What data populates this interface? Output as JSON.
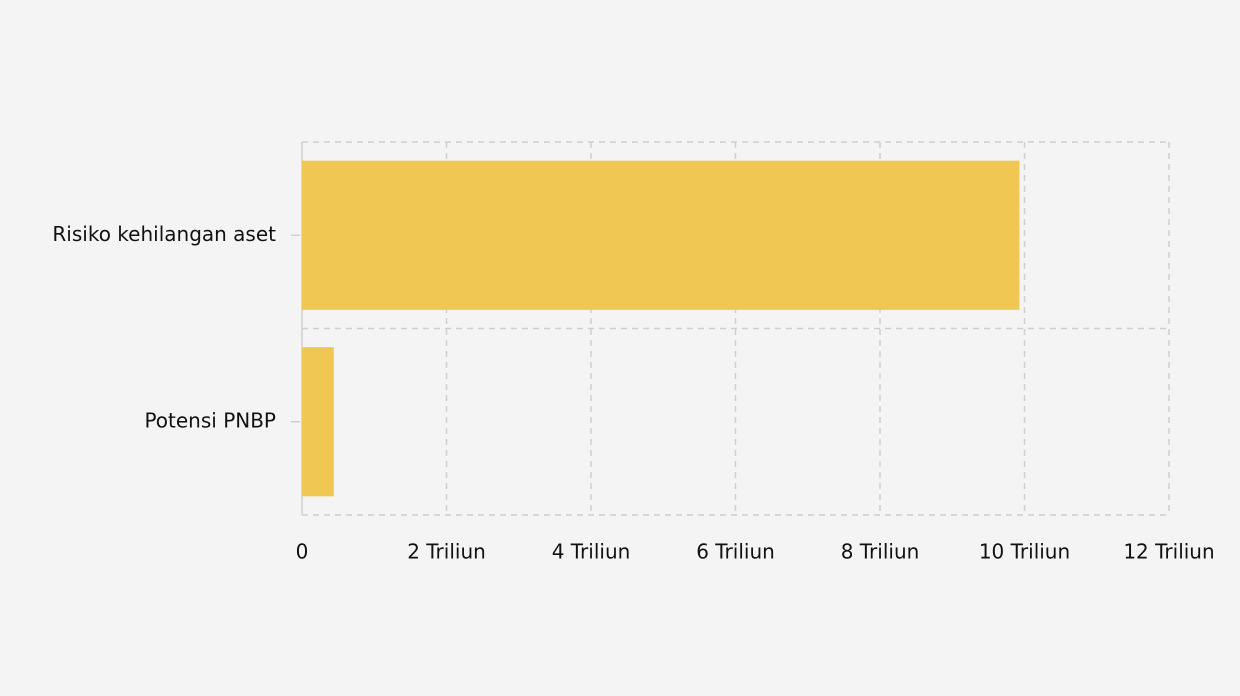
{
  "chart_data": {
    "type": "bar",
    "orientation": "horizontal",
    "categories": [
      "Risiko kehilangan aset",
      "Potensi PNBP"
    ],
    "values": [
      9.93,
      0.44
    ],
    "color": "#efc752",
    "xlim": [
      0,
      12
    ],
    "xticks": [
      0,
      {
        "value": 2,
        "label": "2 Triliun"
      },
      {
        "value": 4,
        "label": "4 Triliun"
      },
      {
        "value": 6,
        "label": "6 Triliun"
      },
      {
        "value": 8,
        "label": "8 Triliun"
      },
      {
        "value": 10,
        "label": "10 Triliun"
      },
      {
        "value": 12,
        "label": "12 Triliun"
      }
    ],
    "grid": true
  }
}
